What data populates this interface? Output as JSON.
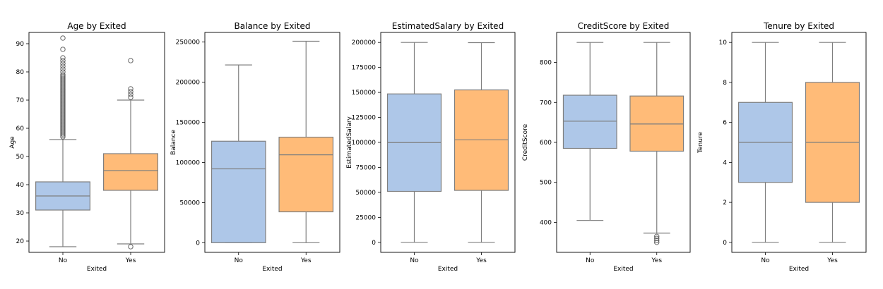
{
  "chart_data": [
    {
      "type": "box",
      "title": "Age by Exited",
      "xlabel": "Exited",
      "ylabel": "Age",
      "ylim": [
        16,
        94
      ],
      "yticks": [
        20,
        30,
        40,
        50,
        60,
        70,
        80,
        90
      ],
      "categories": [
        "No",
        "Yes"
      ],
      "colors": [
        "#aec7e8",
        "#ffbb78"
      ],
      "boxes": [
        {
          "category": "No",
          "whisker_low": 18,
          "q1": 31,
          "median": 36,
          "q3": 41,
          "whisker_high": 56,
          "outliers": [
            57,
            57.5,
            58,
            58.5,
            59,
            59.5,
            60,
            60.5,
            61,
            61.5,
            62,
            62.5,
            63,
            63.5,
            64,
            64.5,
            65,
            65.5,
            66,
            66.5,
            67,
            67.5,
            68,
            68.5,
            69,
            69.5,
            70,
            70.5,
            71,
            71.5,
            72,
            72.5,
            73,
            73.5,
            74,
            74.5,
            75,
            75.5,
            76,
            76.5,
            77,
            77.5,
            78,
            78.5,
            79,
            80,
            81,
            82,
            83,
            84,
            85,
            88,
            92
          ]
        },
        {
          "category": "Yes",
          "whisker_low": 19,
          "q1": 38,
          "median": 45,
          "q3": 51,
          "whisker_high": 70,
          "outliers": [
            18,
            71,
            72,
            73,
            74,
            84
          ]
        }
      ]
    },
    {
      "type": "box",
      "title": "Balance by Exited",
      "xlabel": "Exited",
      "ylabel": "Balance",
      "ylim": [
        -12000,
        262000
      ],
      "yticks": [
        0,
        50000,
        100000,
        150000,
        200000,
        250000
      ],
      "categories": [
        "No",
        "Yes"
      ],
      "colors": [
        "#aec7e8",
        "#ffbb78"
      ],
      "boxes": [
        {
          "category": "No",
          "whisker_low": 0,
          "q1": 0,
          "median": 92000,
          "q3": 126500,
          "whisker_high": 221500,
          "outliers": []
        },
        {
          "category": "Yes",
          "whisker_low": 0,
          "q1": 38500,
          "median": 109500,
          "q3": 131500,
          "whisker_high": 251000,
          "outliers": []
        }
      ]
    },
    {
      "type": "box",
      "title": "EstimatedSalary by Exited",
      "xlabel": "Exited",
      "ylabel": "EstimatedSalary",
      "ylim": [
        -10000,
        210000
      ],
      "yticks": [
        0,
        25000,
        50000,
        75000,
        100000,
        125000,
        150000,
        175000,
        200000
      ],
      "categories": [
        "No",
        "Yes"
      ],
      "colors": [
        "#aec7e8",
        "#ffbb78"
      ],
      "boxes": [
        {
          "category": "No",
          "whisker_low": 0,
          "q1": 51000,
          "median": 99800,
          "q3": 148500,
          "whisker_high": 200000,
          "outliers": []
        },
        {
          "category": "Yes",
          "whisker_low": 0,
          "q1": 52000,
          "median": 102500,
          "q3": 152500,
          "whisker_high": 199800,
          "outliers": []
        }
      ]
    },
    {
      "type": "box",
      "title": "CreditScore by Exited",
      "xlabel": "Exited",
      "ylabel": "CreditScore",
      "ylim": [
        325,
        875
      ],
      "yticks": [
        400,
        500,
        600,
        700,
        800
      ],
      "categories": [
        "No",
        "Yes"
      ],
      "colors": [
        "#aec7e8",
        "#ffbb78"
      ],
      "boxes": [
        {
          "category": "No",
          "whisker_low": 405,
          "q1": 585,
          "median": 653,
          "q3": 718,
          "whisker_high": 850,
          "outliers": []
        },
        {
          "category": "Yes",
          "whisker_low": 373,
          "q1": 578,
          "median": 646,
          "q3": 716,
          "whisker_high": 850,
          "outliers": [
            350,
            355,
            360,
            365
          ]
        }
      ]
    },
    {
      "type": "box",
      "title": "Tenure by Exited",
      "xlabel": "Exited",
      "ylabel": "Tenure",
      "ylim": [
        -0.5,
        10.5
      ],
      "yticks": [
        0,
        2,
        4,
        6,
        8,
        10
      ],
      "categories": [
        "No",
        "Yes"
      ],
      "colors": [
        "#aec7e8",
        "#ffbb78"
      ],
      "boxes": [
        {
          "category": "No",
          "whisker_low": 0,
          "q1": 3,
          "median": 5,
          "q3": 7,
          "whisker_high": 10,
          "outliers": []
        },
        {
          "category": "Yes",
          "whisker_low": 0,
          "q1": 2,
          "median": 5,
          "q3": 8,
          "whisker_high": 10,
          "outliers": []
        }
      ]
    }
  ]
}
